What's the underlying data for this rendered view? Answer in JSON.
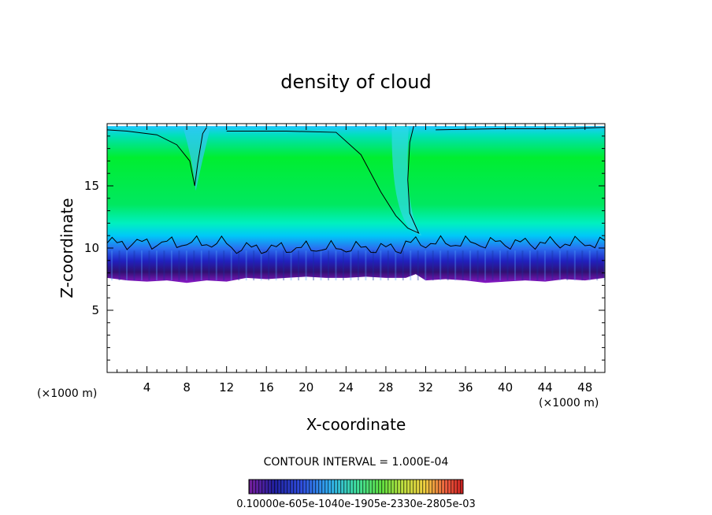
{
  "chart_data": {
    "type": "heatmap",
    "title": "density of cloud",
    "xlabel": "X-coordinate",
    "ylabel": "Z-coordinate",
    "x_unit": "(×1000 m)",
    "y_unit": "(×1000 m)",
    "xlim": [
      0,
      50
    ],
    "ylim": [
      0,
      20
    ],
    "x_ticks": [
      "4",
      "8",
      "12",
      "16",
      "20",
      "24",
      "28",
      "32",
      "36",
      "40",
      "44",
      "48"
    ],
    "y_ticks": [
      "5",
      "10",
      "15"
    ],
    "contour_interval_text": "CONTOUR INTERVAL = 1.000E-04",
    "colorbar": {
      "label_text": "0.10000e-605e-1040e-1905e-2330e-2805e-03"
    },
    "cloud_base_km": [
      [
        0,
        7.6
      ],
      [
        2,
        7.4
      ],
      [
        4,
        7.3
      ],
      [
        6,
        7.4
      ],
      [
        8,
        7.2
      ],
      [
        10,
        7.4
      ],
      [
        12,
        7.3
      ],
      [
        14,
        7.6
      ],
      [
        16,
        7.5
      ],
      [
        18,
        7.6
      ],
      [
        20,
        7.7
      ],
      [
        22,
        7.6
      ],
      [
        24,
        7.6
      ],
      [
        26,
        7.7
      ],
      [
        28,
        7.6
      ],
      [
        30,
        7.6
      ],
      [
        31,
        7.9
      ],
      [
        32,
        7.4
      ],
      [
        34,
        7.5
      ],
      [
        36,
        7.4
      ],
      [
        38,
        7.2
      ],
      [
        40,
        7.3
      ],
      [
        42,
        7.4
      ],
      [
        44,
        7.3
      ],
      [
        46,
        7.5
      ],
      [
        48,
        7.4
      ],
      [
        50,
        7.6
      ]
    ],
    "cloud_top_km": 19.8
  }
}
